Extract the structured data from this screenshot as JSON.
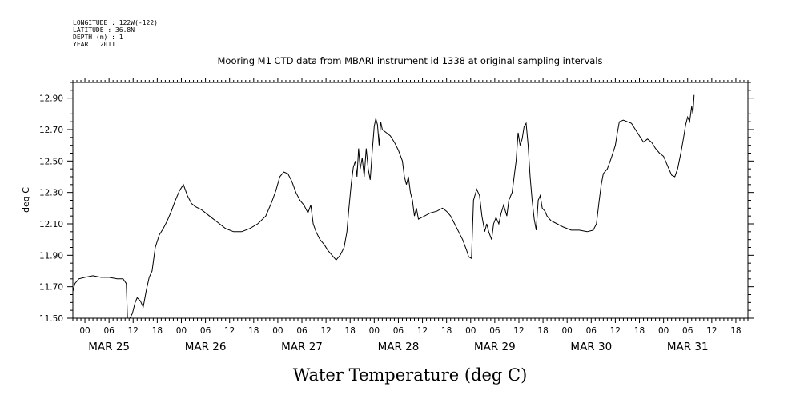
{
  "header": {
    "meta": [
      "LONGITUDE : 122W(-122)",
      "LATITUDE : 36.8N",
      "DEPTH (m) : 1",
      "YEAR : 2011"
    ]
  },
  "chart_data": {
    "type": "line",
    "title": "Mooring M1 CTD data from MBARI instrument id 1338 at original sampling intervals",
    "xlabel": "Water Temperature (deg C)",
    "ylabel": "deg C",
    "x_units": "hours since MAR 25 00:00",
    "xlim": [
      -3,
      165
    ],
    "ylim": [
      11.5,
      13.0
    ],
    "y_ticks": [
      "11.50",
      "11.70",
      "11.90",
      "12.10",
      "12.30",
      "12.50",
      "12.70",
      "12.90"
    ],
    "x_hour_ticks": [
      {
        "x": 0,
        "label": "00"
      },
      {
        "x": 6,
        "label": "06"
      },
      {
        "x": 12,
        "label": "12"
      },
      {
        "x": 18,
        "label": "18"
      },
      {
        "x": 24,
        "label": "00"
      },
      {
        "x": 30,
        "label": "06"
      },
      {
        "x": 36,
        "label": "12"
      },
      {
        "x": 42,
        "label": "18"
      },
      {
        "x": 48,
        "label": "00"
      },
      {
        "x": 54,
        "label": "06"
      },
      {
        "x": 60,
        "label": "12"
      },
      {
        "x": 66,
        "label": "18"
      },
      {
        "x": 72,
        "label": "00"
      },
      {
        "x": 78,
        "label": "06"
      },
      {
        "x": 84,
        "label": "12"
      },
      {
        "x": 90,
        "label": "18"
      },
      {
        "x": 96,
        "label": "00"
      },
      {
        "x": 102,
        "label": "06"
      },
      {
        "x": 108,
        "label": "12"
      },
      {
        "x": 114,
        "label": "18"
      },
      {
        "x": 120,
        "label": "00"
      },
      {
        "x": 126,
        "label": "06"
      },
      {
        "x": 132,
        "label": "12"
      },
      {
        "x": 138,
        "label": "18"
      },
      {
        "x": 144,
        "label": "00"
      },
      {
        "x": 150,
        "label": "06"
      },
      {
        "x": 156,
        "label": "12"
      },
      {
        "x": 162,
        "label": "18"
      }
    ],
    "x_day_labels": [
      {
        "x": 6,
        "label": "MAR 25"
      },
      {
        "x": 30,
        "label": "MAR 26"
      },
      {
        "x": 54,
        "label": "MAR 27"
      },
      {
        "x": 78,
        "label": "MAR 28"
      },
      {
        "x": 102,
        "label": "MAR 29"
      },
      {
        "x": 126,
        "label": "MAR 30"
      },
      {
        "x": 150,
        "label": "MAR 31"
      }
    ],
    "series": [
      {
        "color": "#000000",
        "points": [
          [
            -3.0,
            11.67
          ],
          [
            -2.5,
            11.72
          ],
          [
            -1.5,
            11.75
          ],
          [
            0.0,
            11.76
          ],
          [
            2.0,
            11.77
          ],
          [
            4.0,
            11.76
          ],
          [
            6.0,
            11.76
          ],
          [
            8.0,
            11.75
          ],
          [
            9.5,
            11.75
          ],
          [
            10.3,
            11.72
          ],
          [
            10.6,
            11.5
          ],
          [
            11.2,
            11.5
          ],
          [
            11.8,
            11.53
          ],
          [
            12.5,
            11.6
          ],
          [
            13.0,
            11.63
          ],
          [
            13.8,
            11.61
          ],
          [
            14.5,
            11.57
          ],
          [
            15.3,
            11.68
          ],
          [
            16.0,
            11.76
          ],
          [
            16.7,
            11.8
          ],
          [
            17.5,
            11.95
          ],
          [
            18.5,
            12.03
          ],
          [
            19.5,
            12.07
          ],
          [
            20.5,
            12.12
          ],
          [
            21.5,
            12.18
          ],
          [
            22.5,
            12.25
          ],
          [
            23.5,
            12.31
          ],
          [
            24.5,
            12.35
          ],
          [
            25.5,
            12.28
          ],
          [
            26.5,
            12.23
          ],
          [
            27.5,
            12.21
          ],
          [
            29.0,
            12.19
          ],
          [
            31.0,
            12.15
          ],
          [
            33.0,
            12.11
          ],
          [
            35.0,
            12.07
          ],
          [
            37.0,
            12.05
          ],
          [
            39.0,
            12.05
          ],
          [
            41.0,
            12.07
          ],
          [
            43.0,
            12.1
          ],
          [
            45.0,
            12.15
          ],
          [
            46.5,
            12.24
          ],
          [
            47.5,
            12.31
          ],
          [
            48.5,
            12.4
          ],
          [
            49.5,
            12.43
          ],
          [
            50.5,
            12.42
          ],
          [
            51.5,
            12.37
          ],
          [
            52.5,
            12.3
          ],
          [
            53.5,
            12.25
          ],
          [
            54.5,
            12.22
          ],
          [
            55.5,
            12.17
          ],
          [
            56.2,
            12.22
          ],
          [
            56.8,
            12.1
          ],
          [
            57.5,
            12.05
          ],
          [
            58.5,
            12.0
          ],
          [
            59.5,
            11.97
          ],
          [
            60.5,
            11.93
          ],
          [
            61.5,
            11.9
          ],
          [
            62.5,
            11.87
          ],
          [
            63.5,
            11.9
          ],
          [
            64.5,
            11.95
          ],
          [
            65.2,
            12.05
          ],
          [
            65.7,
            12.2
          ],
          [
            66.3,
            12.36
          ],
          [
            66.8,
            12.46
          ],
          [
            67.3,
            12.5
          ],
          [
            67.7,
            12.4
          ],
          [
            68.1,
            12.58
          ],
          [
            68.5,
            12.45
          ],
          [
            69.0,
            12.52
          ],
          [
            69.5,
            12.4
          ],
          [
            70.0,
            12.58
          ],
          [
            70.5,
            12.45
          ],
          [
            71.0,
            12.38
          ],
          [
            71.5,
            12.56
          ],
          [
            72.0,
            12.72
          ],
          [
            72.4,
            12.77
          ],
          [
            72.8,
            12.73
          ],
          [
            73.2,
            12.6
          ],
          [
            73.6,
            12.75
          ],
          [
            74.0,
            12.7
          ],
          [
            75.0,
            12.68
          ],
          [
            76.0,
            12.66
          ],
          [
            77.0,
            12.62
          ],
          [
            78.0,
            12.57
          ],
          [
            79.0,
            12.5
          ],
          [
            79.5,
            12.4
          ],
          [
            80.0,
            12.35
          ],
          [
            80.5,
            12.4
          ],
          [
            81.0,
            12.3
          ],
          [
            81.5,
            12.25
          ],
          [
            82.0,
            12.15
          ],
          [
            82.5,
            12.2
          ],
          [
            83.0,
            12.13
          ],
          [
            84.5,
            12.15
          ],
          [
            86.0,
            12.17
          ],
          [
            87.5,
            12.18
          ],
          [
            89.0,
            12.2
          ],
          [
            90.0,
            12.18
          ],
          [
            91.0,
            12.15
          ],
          [
            92.0,
            12.1
          ],
          [
            93.0,
            12.05
          ],
          [
            94.0,
            12.0
          ],
          [
            95.0,
            11.93
          ],
          [
            95.5,
            11.89
          ],
          [
            96.2,
            11.88
          ],
          [
            96.7,
            12.25
          ],
          [
            97.5,
            12.32
          ],
          [
            98.2,
            12.28
          ],
          [
            98.8,
            12.15
          ],
          [
            99.5,
            12.05
          ],
          [
            100.0,
            12.1
          ],
          [
            100.5,
            12.05
          ],
          [
            101.2,
            12.0
          ],
          [
            101.7,
            12.1
          ],
          [
            102.3,
            12.14
          ],
          [
            103.0,
            12.1
          ],
          [
            103.6,
            12.17
          ],
          [
            104.2,
            12.22
          ],
          [
            105.0,
            12.15
          ],
          [
            105.5,
            12.25
          ],
          [
            106.3,
            12.3
          ],
          [
            106.8,
            12.4
          ],
          [
            107.3,
            12.5
          ],
          [
            107.8,
            12.68
          ],
          [
            108.3,
            12.6
          ],
          [
            108.8,
            12.64
          ],
          [
            109.3,
            12.72
          ],
          [
            109.8,
            12.74
          ],
          [
            110.3,
            12.6
          ],
          [
            110.8,
            12.4
          ],
          [
            111.3,
            12.25
          ],
          [
            111.8,
            12.13
          ],
          [
            112.3,
            12.06
          ],
          [
            112.8,
            12.25
          ],
          [
            113.3,
            12.28
          ],
          [
            113.8,
            12.2
          ],
          [
            114.5,
            12.18
          ],
          [
            115.0,
            12.15
          ],
          [
            116.0,
            12.12
          ],
          [
            117.5,
            12.1
          ],
          [
            119.0,
            12.08
          ],
          [
            121.0,
            12.06
          ],
          [
            123.0,
            12.06
          ],
          [
            125.0,
            12.05
          ],
          [
            126.5,
            12.06
          ],
          [
            127.3,
            12.1
          ],
          [
            128.0,
            12.25
          ],
          [
            128.5,
            12.35
          ],
          [
            129.0,
            12.42
          ],
          [
            130.0,
            12.45
          ],
          [
            131.0,
            12.52
          ],
          [
            132.0,
            12.6
          ],
          [
            132.5,
            12.68
          ],
          [
            133.0,
            12.75
          ],
          [
            134.0,
            12.76
          ],
          [
            135.0,
            12.75
          ],
          [
            136.0,
            12.74
          ],
          [
            137.0,
            12.7
          ],
          [
            138.0,
            12.66
          ],
          [
            139.0,
            12.62
          ],
          [
            140.0,
            12.64
          ],
          [
            141.0,
            12.62
          ],
          [
            142.0,
            12.58
          ],
          [
            143.0,
            12.55
          ],
          [
            144.0,
            12.53
          ],
          [
            145.0,
            12.47
          ],
          [
            146.0,
            12.41
          ],
          [
            146.8,
            12.4
          ],
          [
            147.5,
            12.45
          ],
          [
            148.3,
            12.55
          ],
          [
            149.0,
            12.65
          ],
          [
            149.5,
            12.73
          ],
          [
            150.0,
            12.78
          ],
          [
            150.5,
            12.75
          ],
          [
            151.0,
            12.85
          ],
          [
            151.3,
            12.8
          ],
          [
            151.6,
            12.92
          ]
        ]
      }
    ]
  }
}
